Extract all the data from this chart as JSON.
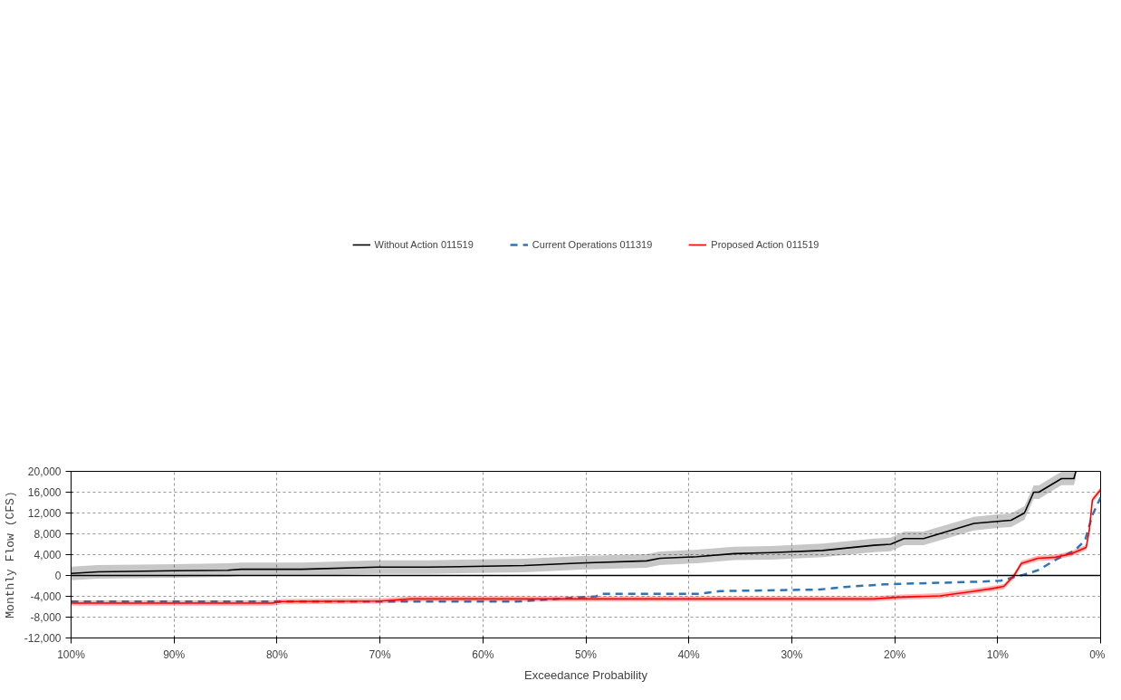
{
  "chart_data": {
    "type": "line",
    "xlabel": "Exceedance Probability",
    "ylabel": "Monthly Flow (CFS)",
    "xlim": [
      100,
      0
    ],
    "ylim": [
      -12000,
      20000
    ],
    "xticks": [
      {
        "value": 100,
        "label": "100%"
      },
      {
        "value": 90,
        "label": "90%"
      },
      {
        "value": 80,
        "label": "80%"
      },
      {
        "value": 70,
        "label": "70%"
      },
      {
        "value": 60,
        "label": "60%"
      },
      {
        "value": 50,
        "label": "50%"
      },
      {
        "value": 40,
        "label": "40%"
      },
      {
        "value": 30,
        "label": "30%"
      },
      {
        "value": 20,
        "label": "20%"
      },
      {
        "value": 10,
        "label": "10%"
      },
      {
        "value": 0,
        "label": "0%"
      }
    ],
    "yticks": [
      {
        "value": -12000,
        "label": "-12,000"
      },
      {
        "value": -8000,
        "label": "-8,000"
      },
      {
        "value": -4000,
        "label": "-4,000"
      },
      {
        "value": 0,
        "label": "0"
      },
      {
        "value": 4000,
        "label": "4,000"
      },
      {
        "value": 8000,
        "label": "8,000"
      },
      {
        "value": 12000,
        "label": "12,000"
      },
      {
        "value": 16000,
        "label": "16,000"
      },
      {
        "value": 20000,
        "label": "20,000"
      }
    ],
    "grid": true,
    "legend": "top",
    "ref_lines": [
      {
        "axis": "y",
        "value": 0,
        "color": "#000000",
        "line_style": "solid"
      }
    ],
    "series": [
      {
        "name": "Without Action 011519",
        "color": "#000000",
        "line_style": "solid",
        "x": [
          100,
          97.4,
          90,
          84.8,
          83.5,
          77.6,
          70.3,
          65.3,
          56,
          50.5,
          44.1,
          42.8,
          39.2,
          35.6,
          32,
          27,
          22,
          20.4,
          19.1,
          17.2,
          14.5,
          12.3,
          10,
          8.7,
          7.4,
          6.5,
          6,
          3.8,
          2.6,
          2.4
        ],
        "values": [
          400,
          700,
          900,
          1000,
          1200,
          1200,
          1600,
          1600,
          1900,
          2400,
          2800,
          3300,
          3600,
          4200,
          4400,
          4800,
          5800,
          6000,
          7100,
          7100,
          8700,
          10000,
          10400,
          10600,
          12000,
          16000,
          16000,
          18600,
          18600,
          20000
        ],
        "lower": [
          -900,
          -600,
          -430,
          -260,
          -100,
          -100,
          320,
          320,
          630,
          1130,
          1500,
          2000,
          2350,
          2940,
          3050,
          3530,
          4500,
          4670,
          5830,
          5830,
          7400,
          8670,
          9140,
          9300,
          10700,
          14700,
          14700,
          17350,
          17350,
          18700
        ],
        "upper": [
          1700,
          2000,
          2170,
          2340,
          2500,
          2500,
          2920,
          2920,
          3230,
          3730,
          4100,
          4600,
          4950,
          5540,
          5650,
          6130,
          7100,
          7270,
          8430,
          8430,
          10000,
          11270,
          11740,
          11900,
          13300,
          17300,
          17300,
          19950,
          19950,
          20000
        ]
      },
      {
        "name": "Current Operations 011319",
        "color": "#2e75b6",
        "line_style": "dashed",
        "x": [
          100,
          80,
          69.4,
          56.7,
          49,
          48.4,
          39,
          37,
          27.3,
          24.8,
          21,
          12,
          9.7,
          7.4,
          6.1,
          4.1,
          2.5,
          1.5,
          0.8,
          0
        ],
        "values": [
          -5000,
          -5000,
          -5000,
          -5000,
          -4000,
          -3500,
          -3500,
          -3000,
          -2700,
          -2200,
          -1700,
          -1200,
          -1000,
          200,
          1000,
          3300,
          4800,
          6800,
          11600,
          15000
        ]
      },
      {
        "name": "Proposed Action 011519",
        "color": "#ff0000",
        "line_style": "solid",
        "x": [
          100,
          80.5,
          79.5,
          70,
          67,
          50,
          22,
          19.9,
          15.6,
          12.5,
          10.5,
          9.4,
          8.4,
          7.7,
          6.1,
          4.4,
          2.8,
          1.4,
          1.1,
          0.8,
          0
        ],
        "values": [
          -5300,
          -5300,
          -5000,
          -4900,
          -4500,
          -4500,
          -4500,
          -4200,
          -3900,
          -3100,
          -2500,
          -2100,
          0,
          2300,
          3300,
          3500,
          4200,
          5400,
          8700,
          14500,
          16500
        ],
        "lower": [
          -5800,
          -5800,
          -5500,
          -5400,
          -5000,
          -5000,
          -5000,
          -4700,
          -4380,
          -3580,
          -3000,
          -2640,
          -500,
          1820,
          2800,
          2980,
          3730,
          4890,
          8200,
          14000,
          16000
        ],
        "upper": [
          -4800,
          -4800,
          -4500,
          -4400,
          -4000,
          -4000,
          -4000,
          -3700,
          -3380,
          -2580,
          -2000,
          -1640,
          500,
          2820,
          3800,
          3980,
          4730,
          5890,
          9200,
          15000,
          17000
        ]
      }
    ]
  }
}
